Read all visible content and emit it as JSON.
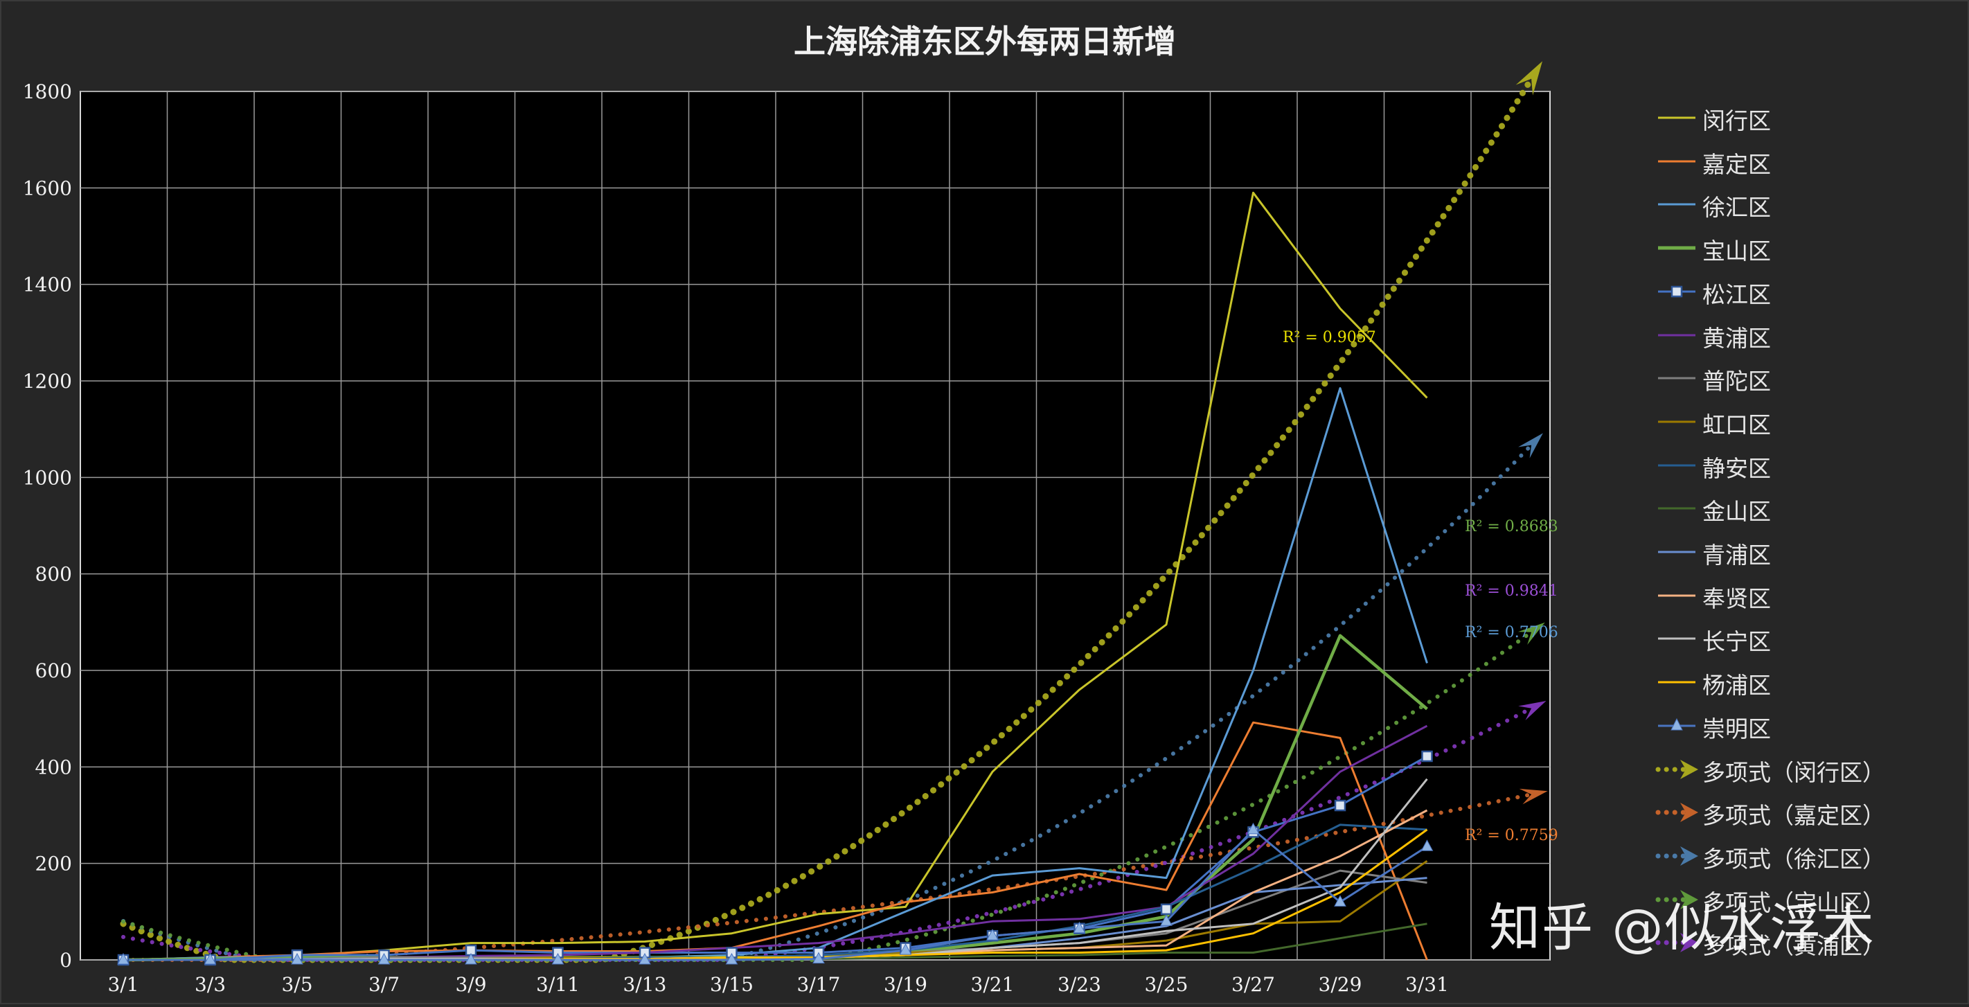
{
  "chart_data": {
    "type": "line",
    "title": "上海除浦东区外每两日新增",
    "xlabel": "",
    "ylabel": "",
    "ylim": [
      0,
      1800
    ],
    "yticks": [
      0,
      200,
      400,
      600,
      800,
      1000,
      1200,
      1400,
      1600,
      1800
    ],
    "categories": [
      "3/1",
      "3/3",
      "3/5",
      "3/7",
      "3/9",
      "3/11",
      "3/13",
      "3/15",
      "3/17",
      "3/19",
      "3/21",
      "3/23",
      "3/25",
      "3/27",
      "3/29",
      "3/31"
    ],
    "grid": true,
    "legend_position": "right",
    "series": [
      {
        "name": "闵行区",
        "color": "#c9c52a",
        "marker": "none",
        "values": [
          0,
          0,
          8,
          20,
          35,
          35,
          38,
          55,
          95,
          110,
          390,
          560,
          695,
          1590,
          1350,
          1165
        ]
      },
      {
        "name": "嘉定区",
        "color": "#ed7d31",
        "marker": "none",
        "values": [
          0,
          5,
          10,
          18,
          20,
          18,
          18,
          25,
          70,
          120,
          140,
          178,
          145,
          492,
          460,
          0
        ]
      },
      {
        "name": "徐汇区",
        "color": "#5b9bd5",
        "marker": "none",
        "values": [
          0,
          5,
          5,
          5,
          5,
          5,
          5,
          10,
          25,
          100,
          175,
          190,
          170,
          600,
          1185,
          615
        ]
      },
      {
        "name": "宝山区",
        "color": "#70ad47",
        "marker": "none",
        "values": [
          0,
          2,
          5,
          5,
          5,
          5,
          5,
          5,
          8,
          15,
          35,
          55,
          90,
          250,
          672,
          520
        ]
      },
      {
        "name": "松江区",
        "color": "#4472c4",
        "marker": "square",
        "values": [
          0,
          0,
          10,
          10,
          20,
          15,
          15,
          15,
          15,
          25,
          50,
          65,
          105,
          265,
          320,
          422
        ]
      },
      {
        "name": "黄浦区",
        "color": "#7030a0",
        "marker": "none",
        "values": [
          0,
          0,
          2,
          5,
          8,
          10,
          15,
          25,
          35,
          55,
          80,
          85,
          110,
          220,
          390,
          485
        ]
      },
      {
        "name": "普陀区",
        "color": "#7f7f7f",
        "marker": "none",
        "values": [
          0,
          0,
          2,
          5,
          5,
          5,
          5,
          5,
          10,
          15,
          25,
          35,
          55,
          120,
          185,
          160
        ]
      },
      {
        "name": "虹口区",
        "color": "#9c7a00",
        "marker": "none",
        "values": [
          0,
          0,
          2,
          2,
          2,
          5,
          5,
          5,
          10,
          15,
          20,
          25,
          40,
          75,
          80,
          205
        ]
      },
      {
        "name": "静安区",
        "color": "#255e91",
        "marker": "none",
        "values": [
          0,
          0,
          2,
          2,
          2,
          2,
          5,
          5,
          10,
          20,
          40,
          70,
          110,
          190,
          280,
          270
        ]
      },
      {
        "name": "金山区",
        "color": "#43682b",
        "marker": "none",
        "values": [
          0,
          0,
          0,
          0,
          0,
          0,
          0,
          2,
          2,
          5,
          8,
          10,
          15,
          15,
          45,
          75
        ]
      },
      {
        "name": "青浦区",
        "color": "#698ed0",
        "marker": "none",
        "values": [
          0,
          0,
          2,
          2,
          2,
          2,
          2,
          5,
          5,
          10,
          25,
          45,
          70,
          140,
          155,
          170
        ]
      },
      {
        "name": "奉贤区",
        "color": "#f4b183",
        "marker": "none",
        "values": [
          0,
          0,
          0,
          2,
          2,
          2,
          2,
          5,
          5,
          10,
          20,
          25,
          30,
          140,
          215,
          310
        ]
      },
      {
        "name": "长宁区",
        "color": "#bfbfbf",
        "marker": "none",
        "values": [
          0,
          0,
          0,
          2,
          2,
          2,
          2,
          5,
          5,
          10,
          25,
          35,
          60,
          75,
          150,
          375
        ]
      },
      {
        "name": "杨浦区",
        "color": "#ffc000",
        "marker": "none",
        "values": [
          0,
          0,
          0,
          0,
          0,
          2,
          2,
          5,
          5,
          10,
          15,
          15,
          20,
          55,
          140,
          270
        ]
      },
      {
        "name": "崇明区",
        "color": "#4a74c0",
        "marker": "triangle",
        "values": [
          0,
          0,
          0,
          0,
          0,
          0,
          0,
          0,
          2,
          20,
          50,
          65,
          80,
          270,
          120,
          235
        ]
      }
    ],
    "trendlines": [
      {
        "name": "多项式（闵行区）",
        "series": "闵行区",
        "color": "#a8a81e",
        "r2_label": "R² = 0.9057",
        "label_color": "#e8e000"
      },
      {
        "name": "多项式（嘉定区）",
        "series": "嘉定区",
        "color": "#c5622a",
        "r2_label": "R² = 0.7759",
        "label_color": "#ed7d31"
      },
      {
        "name": "多项式（徐汇区）",
        "series": "徐汇区",
        "color": "#4a7aa8",
        "r2_label": "R² = 0.7706",
        "label_color": "#5b9bd5"
      },
      {
        "name": "多项式（宝山区）",
        "series": "宝山区",
        "color": "#5f9a3b",
        "r2_label": "R² = 0.8683",
        "label_color": "#70ad47"
      },
      {
        "name": "多项式（黄浦区）",
        "series": "黄浦区",
        "color": "#7d35b5",
        "r2_label": "R² = 0.9841",
        "label_color": "#9b4fd6"
      }
    ]
  },
  "watermark": "知乎 @似水浮木"
}
